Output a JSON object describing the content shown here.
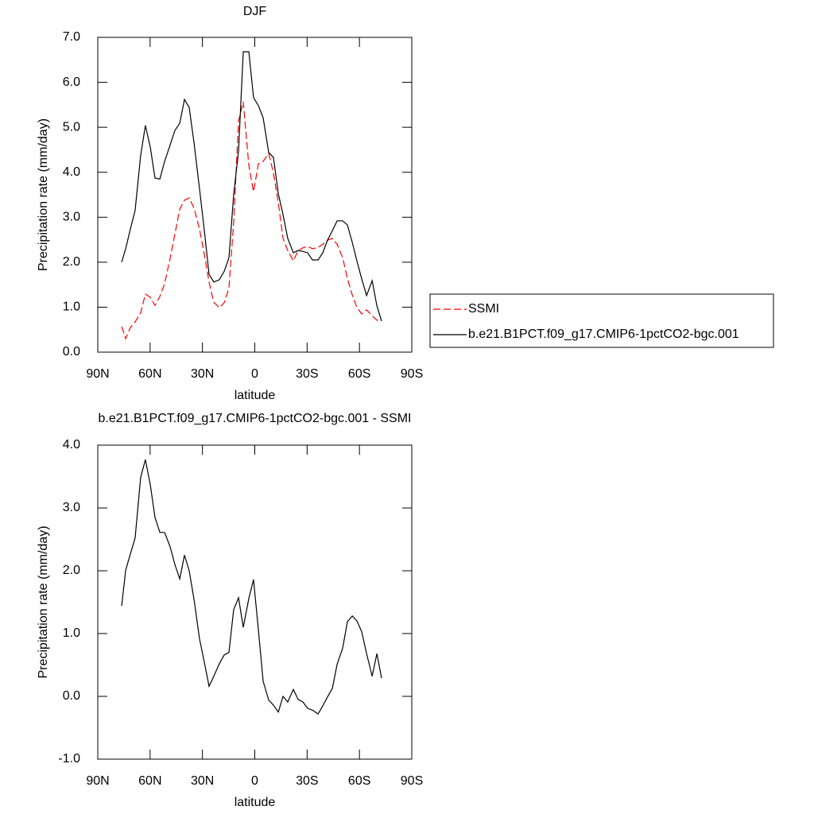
{
  "chart_data": [
    {
      "type": "line",
      "title": "DJF",
      "x_label": "latitude",
      "y_label": "Precipitation rate (mm/day)",
      "xlim": [
        90,
        -90
      ],
      "xticks": [
        {
          "value": 90,
          "label": "90N"
        },
        {
          "value": 60,
          "label": "60N"
        },
        {
          "value": 30,
          "label": "30N"
        },
        0,
        {
          "value": -30,
          "label": "30S"
        },
        {
          "value": -60,
          "label": "60S"
        },
        {
          "value": -90,
          "label": "90S"
        }
      ],
      "ylim": [
        0,
        7
      ],
      "yticks": [
        {
          "value": 0,
          "label": "0.0"
        },
        {
          "value": 1,
          "label": "1.0"
        },
        {
          "value": 2,
          "label": "2.0"
        },
        {
          "value": 3,
          "label": "3.0"
        },
        {
          "value": 4,
          "label": "4.0"
        },
        {
          "value": 5,
          "label": "5.0"
        },
        {
          "value": 6,
          "label": "6.0"
        },
        {
          "value": 7,
          "label": "7.0"
        }
      ],
      "x": [
        76.3,
        74.0,
        71.3,
        68.6,
        65.4,
        62.7,
        59.9,
        57.2,
        54.4,
        51.7,
        48.5,
        45.8,
        43.0,
        40.3,
        37.6,
        34.8,
        31.7,
        28.9,
        26.2,
        23.5,
        20.3,
        17.5,
        14.8,
        12.1,
        9.3,
        6.6,
        3.4,
        0.7,
        -2.1,
        -4.8,
        -8.0,
        -10.7,
        -13.5,
        -16.2,
        -18.9,
        -22.1,
        -24.9,
        -27.6,
        -30.3,
        -33.1,
        -36.3,
        -39.0,
        -41.7,
        -44.5,
        -47.2,
        -50.4,
        -53.1,
        -55.9,
        -58.6,
        -61.3,
        -64.1,
        -67.3,
        -70.0,
        -72.7
      ],
      "series": [
        {
          "name": "SSMI",
          "color": "#ff0000",
          "dash": true,
          "values": [
            0.57,
            0.3,
            0.55,
            0.67,
            0.88,
            1.29,
            1.22,
            1.04,
            1.24,
            1.52,
            2.09,
            2.62,
            3.18,
            3.38,
            3.43,
            3.2,
            2.74,
            2.17,
            1.56,
            1.11,
            0.99,
            1.1,
            1.43,
            2.88,
            5.14,
            5.57,
            4.15,
            3.57,
            4.19,
            4.24,
            4.42,
            3.98,
            3.32,
            2.53,
            2.26,
            2.03,
            2.26,
            2.32,
            2.35,
            2.3,
            2.33,
            2.4,
            2.49,
            2.53,
            2.4,
            2.1,
            1.64,
            1.27,
            0.99,
            0.85,
            0.94,
            0.81,
            0.71,
            0.7
          ]
        },
        {
          "name": "b.e21.B1PCT.f09_g17.CMIP6-1pctCO2-bgc.001",
          "color": "#000000",
          "dash": false,
          "values": [
            2.0,
            2.3,
            2.74,
            3.15,
            4.38,
            5.04,
            4.56,
            3.87,
            3.85,
            4.24,
            4.61,
            4.93,
            5.09,
            5.62,
            5.44,
            4.65,
            3.64,
            2.7,
            1.73,
            1.56,
            1.61,
            1.8,
            2.1,
            3.5,
            4.47,
            6.68,
            6.68,
            5.66,
            5.48,
            5.21,
            4.44,
            4.33,
            3.52,
            3.06,
            2.53,
            2.21,
            2.26,
            2.24,
            2.21,
            2.05,
            2.05,
            2.21,
            2.49,
            2.7,
            2.92,
            2.92,
            2.83,
            2.44,
            2.02,
            1.63,
            1.26,
            1.59,
            1.03,
            0.69
          ]
        }
      ]
    },
    {
      "type": "line",
      "title": "b.e21.B1PCT.f09_g17.CMIP6-1pctCO2-bgc.001 - SSMI",
      "x_label": "latitude",
      "y_label": "Precipitation rate (mm/day)",
      "xlim": [
        90,
        -90
      ],
      "xticks": [
        {
          "value": 90,
          "label": "90N"
        },
        {
          "value": 60,
          "label": "60N"
        },
        {
          "value": 30,
          "label": "30N"
        },
        0,
        {
          "value": -30,
          "label": "30S"
        },
        {
          "value": -60,
          "label": "60S"
        },
        {
          "value": -90,
          "label": "90S"
        }
      ],
      "ylim": [
        -1,
        4
      ],
      "yticks": [
        {
          "value": -1,
          "label": "-1.0"
        },
        {
          "value": 0,
          "label": "0.0"
        },
        {
          "value": 1,
          "label": "1.0"
        },
        {
          "value": 2,
          "label": "2.0"
        },
        {
          "value": 3,
          "label": "3.0"
        },
        {
          "value": 4,
          "label": "4.0"
        }
      ],
      "x": [
        76.3,
        74.0,
        71.3,
        68.6,
        65.4,
        62.7,
        59.9,
        57.2,
        54.4,
        51.7,
        48.5,
        45.8,
        43.0,
        40.3,
        37.6,
        34.8,
        31.7,
        28.9,
        26.2,
        23.5,
        20.3,
        17.5,
        14.8,
        12.1,
        9.3,
        6.6,
        3.4,
        0.7,
        -2.1,
        -4.8,
        -8.0,
        -10.7,
        -13.5,
        -16.2,
        -18.9,
        -22.1,
        -24.9,
        -27.6,
        -30.3,
        -33.1,
        -36.3,
        -39.0,
        -41.7,
        -44.5,
        -47.2,
        -50.4,
        -53.1,
        -55.9,
        -58.6,
        -61.3,
        -64.1,
        -67.3,
        -70.0,
        -72.7
      ],
      "color": "#000000",
      "values": [
        1.44,
        2.01,
        2.27,
        2.52,
        3.49,
        3.77,
        3.37,
        2.85,
        2.61,
        2.61,
        2.38,
        2.1,
        1.87,
        2.25,
        2.0,
        1.54,
        0.92,
        0.54,
        0.16,
        0.32,
        0.52,
        0.66,
        0.7,
        1.38,
        1.57,
        1.1,
        1.56,
        1.86,
        1.05,
        0.24,
        -0.06,
        -0.14,
        -0.25,
        0.0,
        -0.09,
        0.11,
        -0.05,
        -0.09,
        -0.19,
        -0.22,
        -0.28,
        -0.15,
        -0.01,
        0.13,
        0.51,
        0.77,
        1.19,
        1.28,
        1.2,
        1.03,
        0.68,
        0.32,
        0.68,
        0.29
      ]
    }
  ]
}
